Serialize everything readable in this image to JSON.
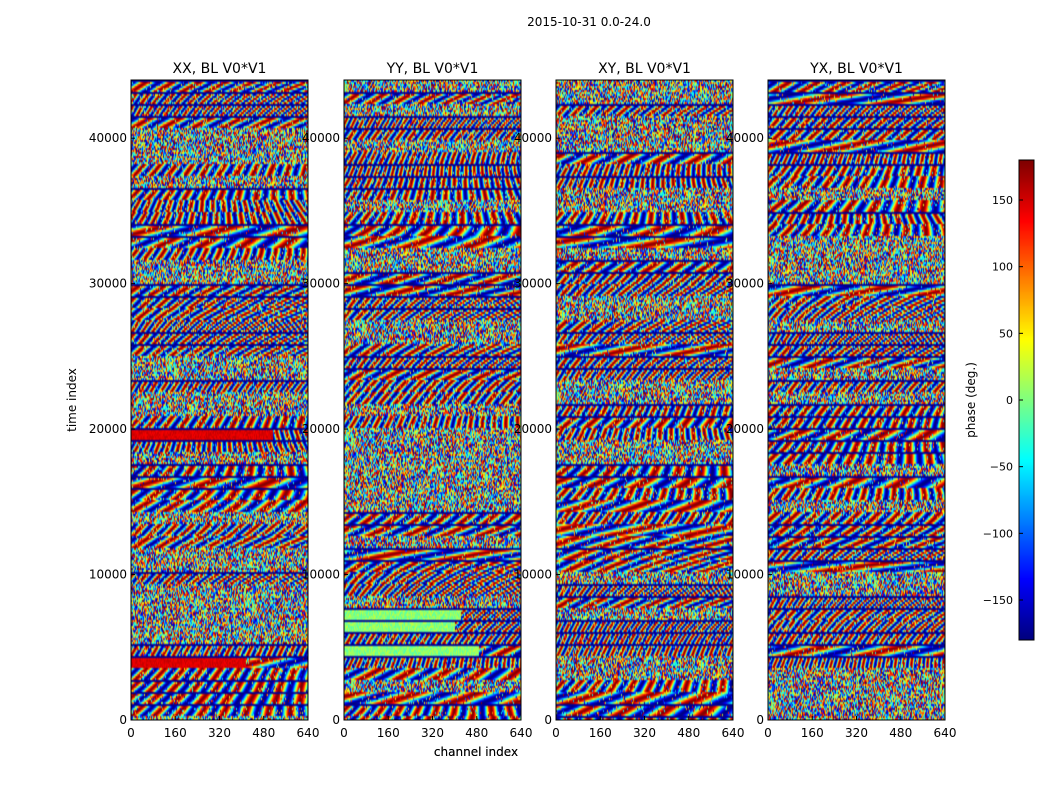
{
  "figure": {
    "suptitle": "2015-10-31 0.0-24.0"
  },
  "chart_data": [
    {
      "type": "heatmap",
      "title": "XX, BL V0*V1",
      "xlabel": "channel index",
      "ylabel": "time index",
      "xlim": [
        0,
        640
      ],
      "ylim": [
        0,
        44000
      ],
      "xticks": [
        0,
        160,
        320,
        480,
        640
      ],
      "yticks": [
        0,
        10000,
        20000,
        30000,
        40000
      ],
      "variant": "xx"
    },
    {
      "type": "heatmap",
      "title": "YY, BL V0*V1",
      "xlabel": "channel index",
      "ylabel": "",
      "xlim": [
        0,
        640
      ],
      "ylim": [
        0,
        44000
      ],
      "xticks": [
        0,
        160,
        320,
        480,
        640
      ],
      "yticks": [
        0,
        10000,
        20000,
        30000,
        40000
      ],
      "variant": "yy"
    },
    {
      "type": "heatmap",
      "title": "XY, BL V0*V1",
      "xlabel": "",
      "ylabel": "",
      "xlim": [
        0,
        640
      ],
      "ylim": [
        0,
        44000
      ],
      "xticks": [
        0,
        160,
        320,
        480,
        640
      ],
      "yticks": [
        0,
        10000,
        20000,
        30000,
        40000
      ],
      "variant": "cross"
    },
    {
      "type": "heatmap",
      "title": "YX, BL V0*V1",
      "xlabel": "",
      "ylabel": "",
      "xlim": [
        0,
        640
      ],
      "ylim": [
        0,
        44000
      ],
      "xticks": [
        0,
        160,
        320,
        480,
        640
      ],
      "yticks": [
        0,
        10000,
        20000,
        30000,
        40000
      ],
      "variant": "cross"
    }
  ],
  "colorbar": {
    "label": "phase (deg.)",
    "range": [
      -180,
      180
    ],
    "ticks": [
      150,
      100,
      50,
      0,
      -50,
      -100,
      -150
    ],
    "colormap": "jet"
  }
}
